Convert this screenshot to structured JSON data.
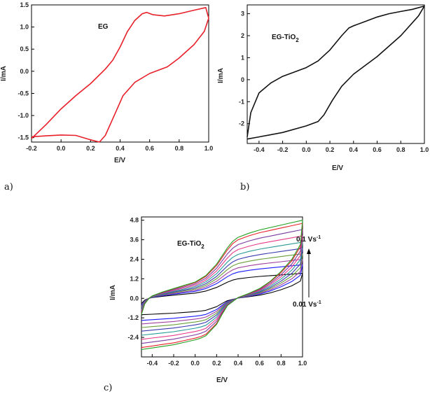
{
  "chart_data": [
    {
      "type": "line",
      "panel_label": "a)",
      "annotation": "EG",
      "xlabel": "E/V",
      "ylabel": "I/mA",
      "xlim": [
        -0.2,
        1.0
      ],
      "ylim": [
        -1.6,
        1.5
      ],
      "xticks": [
        "-0.2",
        "0.0",
        "0.2",
        "0.4",
        "0.6",
        "0.8",
        "1.0"
      ],
      "yticks": [
        "-1.5",
        "-1.0",
        "-0.5",
        "0.0",
        "0.5",
        "1.0",
        "1.5"
      ],
      "grid": false,
      "series": [
        {
          "name": "EG",
          "color": "#e8202a",
          "x": [
            -0.2,
            -0.1,
            0.0,
            0.1,
            0.2,
            0.3,
            0.35,
            0.4,
            0.45,
            0.5,
            0.55,
            0.58,
            0.62,
            0.7,
            0.8,
            0.9,
            0.98,
            1.0,
            0.97,
            0.9,
            0.8,
            0.72,
            0.6,
            0.5,
            0.42,
            0.36,
            0.3,
            0.26,
            0.2,
            0.1,
            0.0,
            -0.1,
            -0.2
          ],
          "y": [
            -1.52,
            -1.2,
            -0.85,
            -0.55,
            -0.28,
            0.05,
            0.25,
            0.55,
            0.9,
            1.15,
            1.3,
            1.33,
            1.28,
            1.25,
            1.3,
            1.38,
            1.44,
            1.2,
            0.9,
            0.6,
            0.3,
            0.1,
            -0.05,
            -0.25,
            -0.55,
            -1.0,
            -1.45,
            -1.6,
            -1.55,
            -1.45,
            -1.44,
            -1.46,
            -1.48
          ]
        }
      ]
    },
    {
      "type": "line",
      "panel_label": "b)",
      "annotation": "EG-TiO",
      "annotation_sub": "2",
      "xlabel": "E/V",
      "ylabel": "I/mA",
      "xlim": [
        -0.5,
        1.0
      ],
      "ylim": [
        -2.9,
        3.4
      ],
      "xticks": [
        "-0.4",
        "-0.2",
        "0.0",
        "0.2",
        "0.4",
        "0.6",
        "0.8",
        "1.0"
      ],
      "yticks": [
        "-2",
        "-1",
        "0",
        "1",
        "2",
        "3"
      ],
      "grid": false,
      "series": [
        {
          "name": "EG-TiO2",
          "color": "#111111",
          "x": [
            -0.5,
            -0.47,
            -0.4,
            -0.3,
            -0.2,
            -0.1,
            0.0,
            0.1,
            0.2,
            0.3,
            0.36,
            0.4,
            0.5,
            0.6,
            0.7,
            0.8,
            0.9,
            1.0,
            0.95,
            0.8,
            0.6,
            0.5,
            0.4,
            0.3,
            0.22,
            0.15,
            0.1,
            0.0,
            -0.2,
            -0.4,
            -0.5
          ],
          "y": [
            -2.6,
            -1.5,
            -0.6,
            -0.15,
            0.15,
            0.35,
            0.55,
            0.85,
            1.35,
            2.0,
            2.35,
            2.45,
            2.65,
            2.85,
            3.0,
            3.1,
            3.2,
            3.35,
            2.9,
            2.0,
            1.05,
            0.65,
            0.25,
            -0.3,
            -0.95,
            -1.6,
            -1.9,
            -2.1,
            -2.4,
            -2.6,
            -2.7
          ]
        }
      ]
    },
    {
      "type": "line",
      "panel_label": "c)",
      "annotation": "EG-TiO",
      "annotation_sub": "2",
      "scan_high": "0.1 Vs",
      "scan_low": "0.01 Vs",
      "scan_sup": "-1",
      "xlabel": "E/V",
      "ylabel": "I/mA",
      "xlim": [
        -0.5,
        1.0
      ],
      "ylim": [
        -3.6,
        5.0
      ],
      "xticks": [
        "-0.4",
        "-0.2",
        "0.0",
        "0.2",
        "0.4",
        "0.6",
        "0.8",
        "1.0"
      ],
      "yticks": [
        "-2.4",
        "-1.2",
        "0.0",
        "1.2",
        "2.4",
        "3.6",
        "4.8"
      ],
      "grid": false,
      "scan_rate_factors": [
        0.32,
        0.43,
        0.5,
        0.57,
        0.64,
        0.72,
        0.8,
        0.88,
        0.96,
        1.0
      ],
      "series_colors": [
        "#000000",
        "#1a1aff",
        "#a040a0",
        "#6aa03a",
        "#3a3ab0",
        "#2a9a9a",
        "#e83a8a",
        "#7a3aa0",
        "#e8202a",
        "#20a020"
      ],
      "base_curve": {
        "x": [
          -0.5,
          -0.47,
          -0.43,
          -0.4,
          -0.3,
          -0.2,
          -0.1,
          0.0,
          0.1,
          0.2,
          0.3,
          0.35,
          0.4,
          0.5,
          0.6,
          0.7,
          0.8,
          0.9,
          1.0,
          0.98,
          0.9,
          0.8,
          0.7,
          0.6,
          0.5,
          0.4,
          0.3,
          0.25,
          0.2,
          0.1,
          0.05,
          0.0,
          -0.1,
          -0.2,
          -0.3,
          -0.4,
          -0.5
        ],
        "y": [
          -1.0,
          -0.35,
          0.0,
          0.15,
          0.4,
          0.6,
          0.8,
          1.0,
          1.4,
          2.1,
          3.1,
          3.5,
          3.75,
          4.0,
          4.2,
          4.35,
          4.5,
          4.65,
          4.8,
          3.3,
          2.4,
          1.65,
          1.05,
          0.6,
          0.3,
          0.05,
          -0.45,
          -1.0,
          -1.6,
          -2.3,
          -2.45,
          -2.55,
          -2.7,
          -2.85,
          -2.95,
          -3.05,
          -3.15
        ]
      }
    }
  ]
}
